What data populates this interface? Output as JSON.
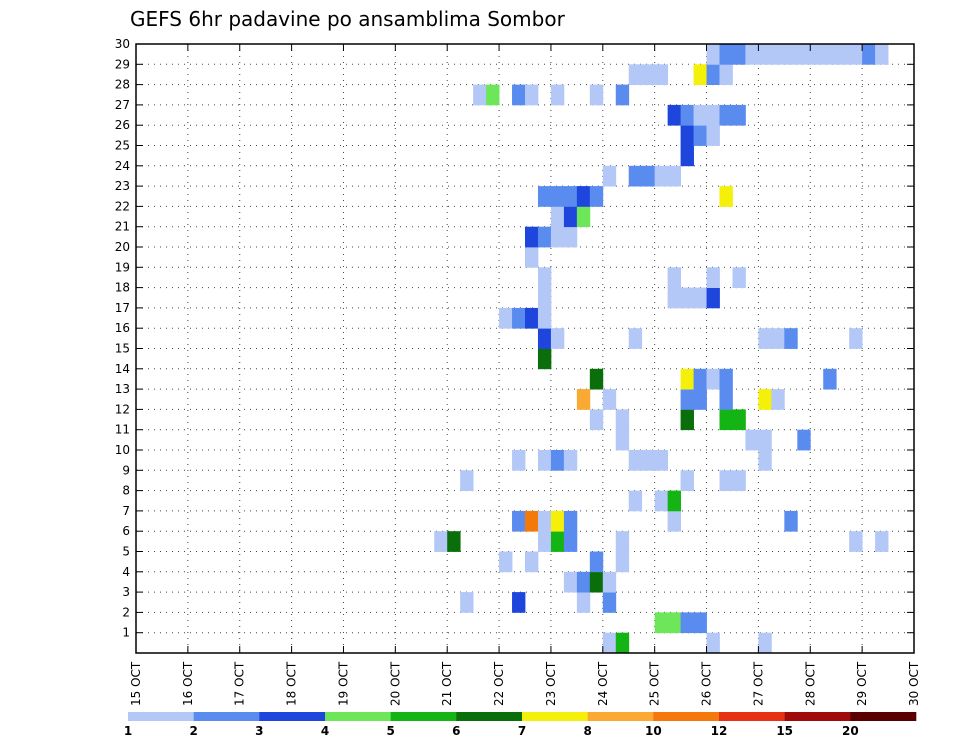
{
  "chart_data": {
    "type": "heatmap",
    "title": "GEFS 6hr padavine po ansamblima Sombor",
    "xlabel": "",
    "ylabel": "",
    "x_ticks": [
      "15 OCT",
      "16 OCT",
      "17 OCT",
      "18 OCT",
      "19 OCT",
      "20 OCT",
      "21 OCT",
      "22 OCT",
      "23 OCT",
      "24 OCT",
      "25 OCT",
      "26 OCT",
      "27 OCT",
      "28 OCT",
      "29 OCT",
      "30 OCT"
    ],
    "y_ticks": [
      1,
      2,
      3,
      4,
      5,
      6,
      7,
      8,
      9,
      10,
      11,
      12,
      13,
      14,
      15,
      16,
      17,
      18,
      19,
      20,
      21,
      22,
      23,
      24,
      25,
      26,
      27,
      28,
      29,
      30
    ],
    "xlim": [
      0,
      60
    ],
    "ylim": [
      0,
      30
    ],
    "grid": true,
    "colorbar": {
      "labels": [
        "1",
        "2",
        "3",
        "4",
        "5",
        "6",
        "7",
        "8",
        "10",
        "12",
        "15",
        "20"
      ],
      "colors": [
        "#b4c8f8",
        "#5a8cf0",
        "#1e46dc",
        "#6ee65a",
        "#14b414",
        "#0a6e0a",
        "#f5f00a",
        "#faaa32",
        "#f5780a",
        "#e63214",
        "#a00a0a",
        "#5a0000"
      ]
    },
    "cells": [
      [
        36.5,
        0,
        0
      ],
      [
        37.5,
        0,
        4
      ],
      [
        44.5,
        0,
        0
      ],
      [
        48.5,
        0,
        0
      ],
      [
        40.5,
        1,
        3
      ],
      [
        41.5,
        1,
        3
      ],
      [
        42.5,
        1,
        1
      ],
      [
        43.5,
        1,
        1
      ],
      [
        25.5,
        2,
        0
      ],
      [
        29.5,
        2,
        2
      ],
      [
        34.5,
        2,
        0
      ],
      [
        36.5,
        2,
        1
      ],
      [
        33.5,
        3,
        0
      ],
      [
        34.5,
        3,
        1
      ],
      [
        35.5,
        3,
        5
      ],
      [
        36.5,
        3,
        0
      ],
      [
        28.5,
        4,
        0
      ],
      [
        30.5,
        4,
        0
      ],
      [
        35.5,
        4,
        1
      ],
      [
        37.5,
        4,
        0
      ],
      [
        23.5,
        5,
        0
      ],
      [
        24.5,
        5,
        5
      ],
      [
        31.5,
        5,
        0
      ],
      [
        32.5,
        5,
        4
      ],
      [
        33.5,
        5,
        1
      ],
      [
        37.5,
        5,
        0
      ],
      [
        55.5,
        5,
        0
      ],
      [
        57.5,
        5,
        0
      ],
      [
        29.5,
        6,
        1
      ],
      [
        30.5,
        6,
        8
      ],
      [
        31.5,
        6,
        0
      ],
      [
        32.5,
        6,
        6
      ],
      [
        33.5,
        6,
        1
      ],
      [
        41.5,
        6,
        0
      ],
      [
        50.5,
        6,
        1
      ],
      [
        38.5,
        7,
        0
      ],
      [
        40.5,
        7,
        0
      ],
      [
        41.5,
        7,
        4
      ],
      [
        25.5,
        8,
        0
      ],
      [
        42.5,
        8,
        0
      ],
      [
        45.5,
        8,
        0
      ],
      [
        46.5,
        8,
        0
      ],
      [
        29.5,
        9,
        0
      ],
      [
        31.5,
        9,
        0
      ],
      [
        32.5,
        9,
        1
      ],
      [
        33.5,
        9,
        0
      ],
      [
        38.5,
        9,
        0
      ],
      [
        39.5,
        9,
        0
      ],
      [
        40.5,
        9,
        0
      ],
      [
        48.5,
        9,
        0
      ],
      [
        37.5,
        10,
        0
      ],
      [
        47.5,
        10,
        0
      ],
      [
        48.5,
        10,
        0
      ],
      [
        51.5,
        10,
        1
      ],
      [
        35.5,
        11,
        0
      ],
      [
        37.5,
        11,
        0
      ],
      [
        42.5,
        11,
        5
      ],
      [
        45.5,
        11,
        4
      ],
      [
        46.5,
        11,
        4
      ],
      [
        34.5,
        12,
        7
      ],
      [
        36.5,
        12,
        0
      ],
      [
        42.5,
        12,
        1
      ],
      [
        43.5,
        12,
        1
      ],
      [
        45.5,
        12,
        1
      ],
      [
        48.5,
        12,
        6
      ],
      [
        49.5,
        12,
        0
      ],
      [
        35.5,
        13,
        5
      ],
      [
        42.5,
        13,
        6
      ],
      [
        43.5,
        13,
        1
      ],
      [
        44.5,
        13,
        0
      ],
      [
        45.5,
        13,
        1
      ],
      [
        53.5,
        13,
        1
      ],
      [
        31.5,
        14,
        5
      ],
      [
        31.5,
        15,
        2
      ],
      [
        32.5,
        15,
        0
      ],
      [
        38.5,
        15,
        0
      ],
      [
        48.5,
        15,
        0
      ],
      [
        49.5,
        15,
        0
      ],
      [
        50.5,
        15,
        1
      ],
      [
        55.5,
        15,
        0
      ],
      [
        28.5,
        16,
        0
      ],
      [
        29.5,
        16,
        1
      ],
      [
        30.5,
        16,
        2
      ],
      [
        31.5,
        16,
        0
      ],
      [
        31.5,
        17,
        0
      ],
      [
        31.5,
        18,
        0
      ],
      [
        41.5,
        17,
        0
      ],
      [
        42.5,
        17,
        0
      ],
      [
        43.5,
        17,
        0
      ],
      [
        44.5,
        17,
        2
      ],
      [
        41.5,
        18,
        0
      ],
      [
        44.5,
        18,
        0
      ],
      [
        46.5,
        18,
        0
      ],
      [
        30.5,
        19,
        0
      ],
      [
        30.5,
        20,
        2
      ],
      [
        31.5,
        20,
        1
      ],
      [
        32.5,
        20,
        0
      ],
      [
        33.5,
        20,
        0
      ],
      [
        32.5,
        21,
        0
      ],
      [
        33.5,
        21,
        2
      ],
      [
        34.5,
        21,
        3
      ],
      [
        31.5,
        22,
        1
      ],
      [
        32.5,
        22,
        1
      ],
      [
        33.5,
        22,
        1
      ],
      [
        34.5,
        22,
        2
      ],
      [
        35.5,
        22,
        1
      ],
      [
        45.5,
        22,
        6
      ],
      [
        36.5,
        23,
        0
      ],
      [
        38.5,
        23,
        1
      ],
      [
        39.5,
        23,
        1
      ],
      [
        40.5,
        23,
        0
      ],
      [
        41.5,
        23,
        0
      ],
      [
        42.5,
        24,
        2
      ],
      [
        42.5,
        25,
        2
      ],
      [
        43.5,
        25,
        1
      ],
      [
        44.5,
        25,
        0
      ],
      [
        41.5,
        26,
        2
      ],
      [
        42.5,
        26,
        1
      ],
      [
        43.5,
        26,
        0
      ],
      [
        44.5,
        26,
        0
      ],
      [
        45.5,
        26,
        1
      ],
      [
        46.5,
        26,
        1
      ],
      [
        26.5,
        27,
        0
      ],
      [
        27.5,
        27,
        3
      ],
      [
        29.5,
        27,
        1
      ],
      [
        30.5,
        27,
        0
      ],
      [
        32.5,
        27,
        0
      ],
      [
        35.5,
        27,
        0
      ],
      [
        37.5,
        27,
        1
      ],
      [
        38.5,
        28,
        0
      ],
      [
        39.5,
        28,
        0
      ],
      [
        40.5,
        28,
        0
      ],
      [
        43.5,
        28,
        6
      ],
      [
        44.5,
        28,
        1
      ],
      [
        45.5,
        28,
        0
      ],
      [
        44.5,
        29,
        0
      ],
      [
        45.5,
        29,
        1
      ],
      [
        46.5,
        29,
        1
      ],
      [
        47.5,
        29,
        0
      ],
      [
        48.5,
        29,
        0
      ],
      [
        49.5,
        29,
        0
      ],
      [
        50.5,
        29,
        0
      ],
      [
        51.5,
        29,
        0
      ],
      [
        52.5,
        29,
        0
      ],
      [
        53.5,
        29,
        0
      ],
      [
        54.5,
        29,
        0
      ],
      [
        55.5,
        29,
        0
      ],
      [
        56.5,
        29,
        1
      ],
      [
        57.5,
        29,
        0
      ]
    ]
  }
}
